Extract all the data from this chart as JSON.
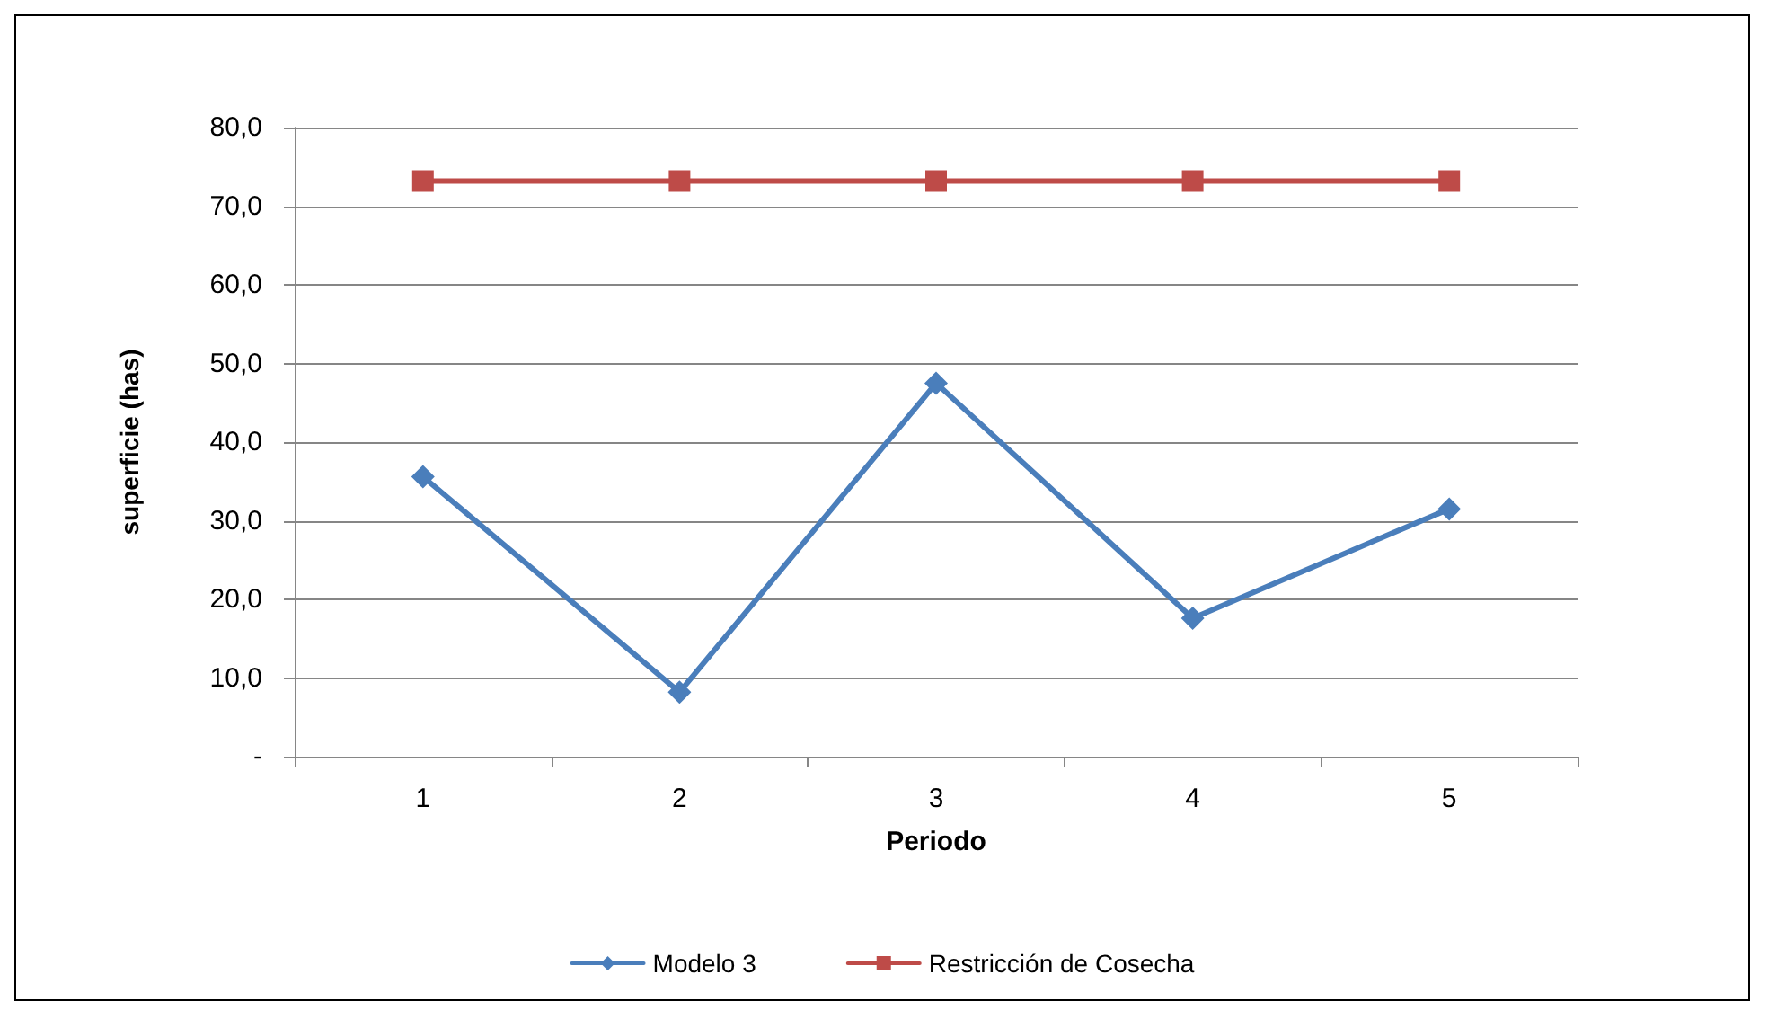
{
  "chart_data": {
    "type": "line",
    "xlabel": "Periodo",
    "ylabel": "superficie (has)",
    "categories": [
      "1",
      "2",
      "3",
      "4",
      "5"
    ],
    "series": [
      {
        "name": "Modelo 3",
        "color": "#4a7ebb",
        "marker": "diamond",
        "values": [
          35.6,
          8.2,
          47.5,
          17.6,
          31.5
        ]
      },
      {
        "name": "Restricción de Cosecha",
        "color": "#be4b48",
        "marker": "square",
        "values": [
          73.2,
          73.2,
          73.2,
          73.2,
          73.2
        ]
      }
    ],
    "ylim": [
      0,
      80
    ],
    "yticks": [
      {
        "value": 0,
        "label": "-"
      },
      {
        "value": 10,
        "label": "10,0"
      },
      {
        "value": 20,
        "label": "20,0"
      },
      {
        "value": 30,
        "label": "30,0"
      },
      {
        "value": 40,
        "label": "40,0"
      },
      {
        "value": 50,
        "label": "50,0"
      },
      {
        "value": 60,
        "label": "60,0"
      },
      {
        "value": 70,
        "label": "70,0"
      },
      {
        "value": 80,
        "label": "80,0"
      }
    ],
    "grid": "y",
    "legend": "bottom",
    "line_style": "solid"
  }
}
